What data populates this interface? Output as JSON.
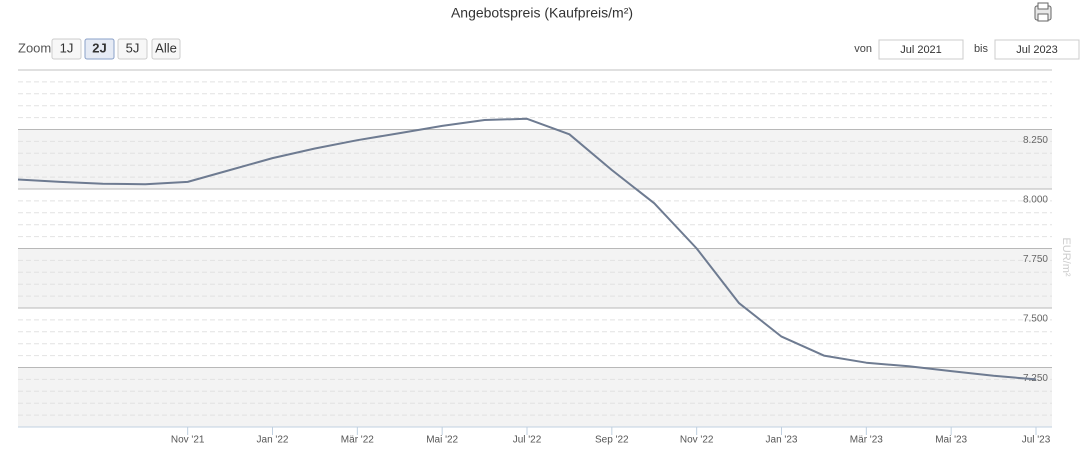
{
  "chart_data": {
    "type": "line",
    "title": "Angebotspreis (Kaufpreis/m²)",
    "y_axis_label": "EUR/m²",
    "range_selector": {
      "label": "Zoom",
      "buttons": [
        "1J",
        "2J",
        "5J",
        "Alle"
      ],
      "selected": 1
    },
    "date_range": {
      "from_label": "von",
      "from": "Jul 2021",
      "to_label": "bis",
      "to": "Jul 2023"
    },
    "categories": [
      null,
      null,
      null,
      null,
      "Nov '21",
      null,
      "Jan '22",
      null,
      "Mär '22",
      null,
      "Mai '22",
      null,
      "Jul '22",
      null,
      "Sep '22",
      null,
      "Nov '22",
      null,
      "Jan '23",
      null,
      "Mär '23",
      null,
      "Mai '23",
      null,
      "Jul '23"
    ],
    "series": [
      {
        "name": "Angebotspreis",
        "color": "#6e7b91",
        "values": [
          8040,
          8030,
          8022,
          8020,
          8030,
          8080,
          8130,
          8170,
          8205,
          8235,
          8265,
          8290,
          8295,
          8230,
          8080,
          7940,
          7750,
          7520,
          7380,
          7300,
          7270,
          7255,
          7235,
          7215,
          7200
        ]
      }
    ],
    "ylim": [
      7000,
      8500
    ],
    "yticks": [
      {
        "value": 7250,
        "label": "7.250"
      },
      {
        "value": 7500,
        "label": "7.500"
      },
      {
        "value": 7750,
        "label": "7.750"
      },
      {
        "value": 8000,
        "label": "8.000"
      },
      {
        "value": 8250,
        "label": "8.250"
      }
    ],
    "minor_tick_interval": 50,
    "grid": true
  }
}
